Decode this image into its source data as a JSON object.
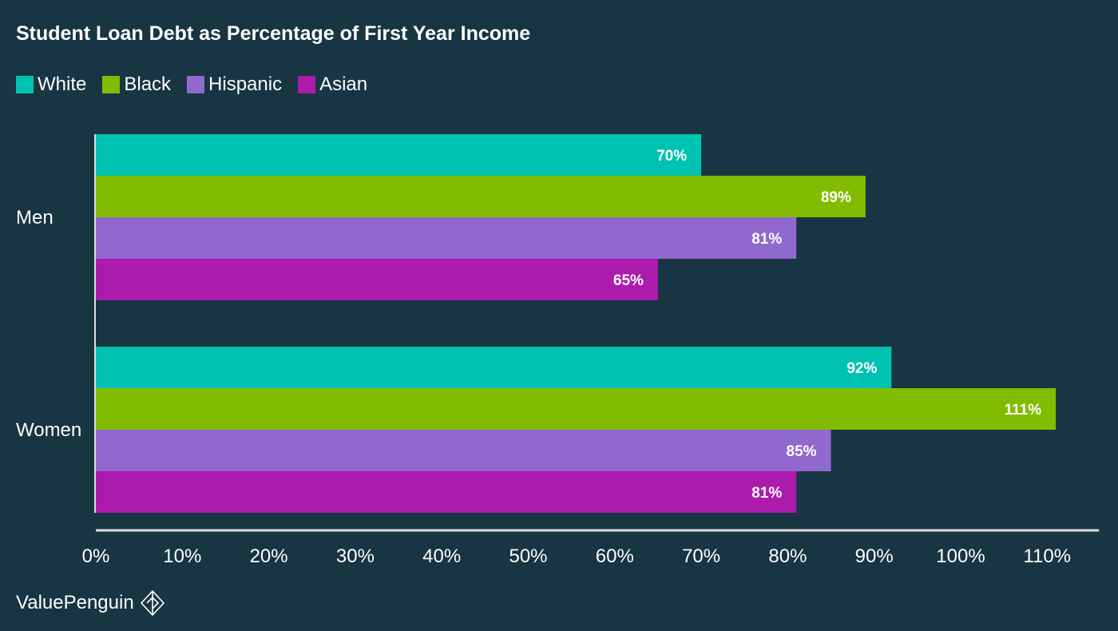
{
  "chart_data": {
    "type": "bar",
    "orientation": "horizontal",
    "title": "Student Loan Debt as Percentage of First Year Income",
    "categories": [
      "Men",
      "Women"
    ],
    "series": [
      {
        "name": "White",
        "color": "#00c2b0",
        "values": [
          70,
          92
        ],
        "labels": [
          "70%",
          "92%"
        ]
      },
      {
        "name": "Black",
        "color": "#82bc00",
        "values": [
          89,
          111
        ],
        "labels": [
          "89%",
          "111%"
        ]
      },
      {
        "name": "Hispanic",
        "color": "#9168ce",
        "values": [
          81,
          85
        ],
        "labels": [
          "81%",
          "85%"
        ]
      },
      {
        "name": "Asian",
        "color": "#ad1bad",
        "values": [
          65,
          81
        ],
        "labels": [
          "65%",
          "81%"
        ]
      }
    ],
    "xticks": [
      0,
      10,
      20,
      30,
      40,
      50,
      60,
      70,
      80,
      90,
      100,
      110
    ],
    "xtick_labels": [
      "0%",
      "10%",
      "20%",
      "30%",
      "40%",
      "50%",
      "60%",
      "70%",
      "80%",
      "90%",
      "100%",
      "110%"
    ],
    "xlim": [
      0,
      116
    ],
    "legend_position": "top-left",
    "grid": false
  },
  "branding": {
    "name": "ValuePenguin"
  },
  "colors": {
    "background": "#173542",
    "axis": "#dddddd",
    "text": "#ffffff"
  }
}
